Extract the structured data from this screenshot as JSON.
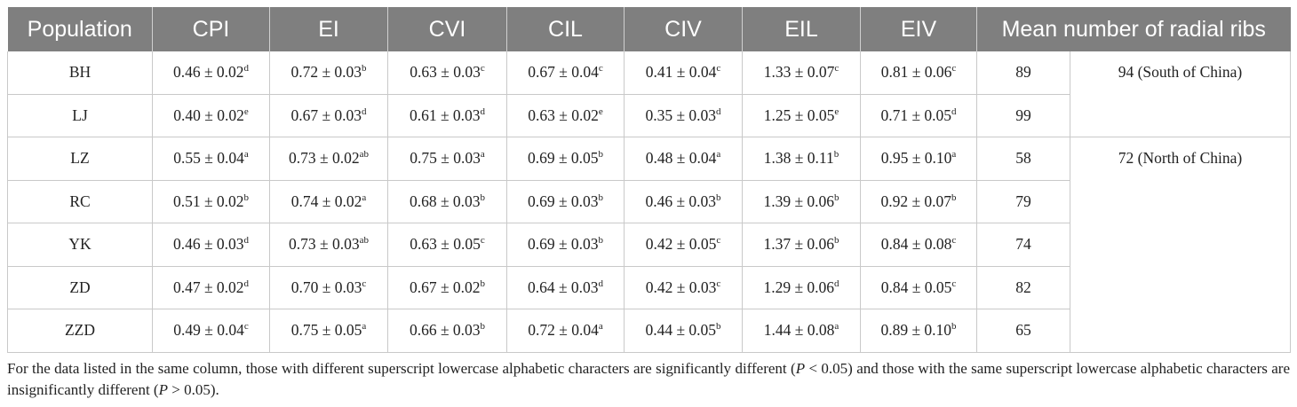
{
  "table": {
    "headers": [
      "Population",
      "CPI",
      "EI",
      "CVI",
      "CIL",
      "CIV",
      "EIL",
      "EIV",
      "Mean number of radial ribs"
    ],
    "rows": [
      {
        "pop": "BH",
        "cells": [
          [
            "0.46 ± 0.02",
            "d"
          ],
          [
            "0.72 ± 0.03",
            "b"
          ],
          [
            "0.63 ± 0.03",
            "c"
          ],
          [
            "0.67 ± 0.04",
            "c"
          ],
          [
            "0.41 ± 0.04",
            "c"
          ],
          [
            "1.33 ± 0.07",
            "c"
          ],
          [
            "0.81 ± 0.06",
            "c"
          ]
        ],
        "ribs": "89"
      },
      {
        "pop": "LJ",
        "cells": [
          [
            "0.40 ± 0.02",
            "e"
          ],
          [
            "0.67 ± 0.03",
            "d"
          ],
          [
            "0.61 ± 0.03",
            "d"
          ],
          [
            "0.63 ± 0.02",
            "e"
          ],
          [
            "0.35 ± 0.03",
            "d"
          ],
          [
            "1.25 ± 0.05",
            "e"
          ],
          [
            "0.71 ± 0.05",
            "d"
          ]
        ],
        "ribs": "99"
      },
      {
        "pop": "LZ",
        "cells": [
          [
            "0.55 ± 0.04",
            "a"
          ],
          [
            "0.73 ± 0.02",
            "ab"
          ],
          [
            "0.75 ± 0.03",
            "a"
          ],
          [
            "0.69 ± 0.05",
            "b"
          ],
          [
            "0.48 ± 0.04",
            "a"
          ],
          [
            "1.38 ± 0.11",
            "b"
          ],
          [
            "0.95 ± 0.10",
            "a"
          ]
        ],
        "ribs": "58"
      },
      {
        "pop": "RC",
        "cells": [
          [
            "0.51 ± 0.02",
            "b"
          ],
          [
            "0.74 ± 0.02",
            "a"
          ],
          [
            "0.68 ± 0.03",
            "b"
          ],
          [
            "0.69 ± 0.03",
            "b"
          ],
          [
            "0.46 ± 0.03",
            "b"
          ],
          [
            "1.39 ± 0.06",
            "b"
          ],
          [
            "0.92 ± 0.07",
            "b"
          ]
        ],
        "ribs": "79"
      },
      {
        "pop": "YK",
        "cells": [
          [
            "0.46 ± 0.03",
            "d"
          ],
          [
            "0.73 ± 0.03",
            "ab"
          ],
          [
            "0.63 ± 0.05",
            "c"
          ],
          [
            "0.69 ± 0.03",
            "b"
          ],
          [
            "0.42 ± 0.05",
            "c"
          ],
          [
            "1.37 ± 0.06",
            "b"
          ],
          [
            "0.84 ± 0.08",
            "c"
          ]
        ],
        "ribs": "74"
      },
      {
        "pop": "ZD",
        "cells": [
          [
            "0.47 ± 0.02",
            "d"
          ],
          [
            "0.70 ± 0.03",
            "c"
          ],
          [
            "0.67 ± 0.02",
            "b"
          ],
          [
            "0.64 ± 0.03",
            "d"
          ],
          [
            "0.42 ± 0.03",
            "c"
          ],
          [
            "1.29 ± 0.06",
            "d"
          ],
          [
            "0.84 ± 0.05",
            "c"
          ]
        ],
        "ribs": "82"
      },
      {
        "pop": "ZZD",
        "cells": [
          [
            "0.49 ± 0.04",
            "c"
          ],
          [
            "0.75 ± 0.05",
            "a"
          ],
          [
            "0.66 ± 0.03",
            "b"
          ],
          [
            "0.72 ± 0.04",
            "a"
          ],
          [
            "0.44 ± 0.05",
            "b"
          ],
          [
            "1.44 ± 0.08",
            "a"
          ],
          [
            "0.89 ± 0.10",
            "b"
          ]
        ],
        "ribs": "65"
      }
    ],
    "groups": [
      {
        "label": "94 (South of China)",
        "span": 2
      },
      {
        "label": "72 (North of China)",
        "span": 5
      }
    ]
  },
  "footnote": {
    "part1": "For the data listed in the same column, those with different superscript lowercase alphabetic characters are significantly different (",
    "p1": "P",
    "part2": " < 0.05) and those with the same superscript lowercase alphabetic characters are insignificantly different (",
    "p2": "P",
    "part3": " > 0.05)."
  }
}
